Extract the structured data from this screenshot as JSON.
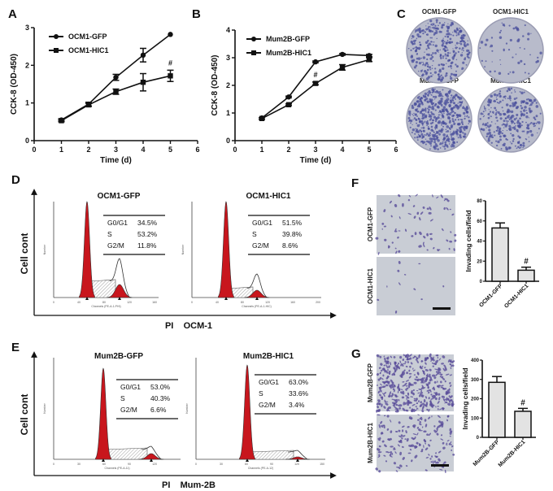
{
  "panels": {
    "A": "A",
    "B": "B",
    "C": "C",
    "D": "D",
    "E": "E",
    "F": "F",
    "G": "G"
  },
  "colors": {
    "red": "#c8161d",
    "purple": "#4a4f9c",
    "blue_pct": "#3a3f9a",
    "plate": "#b9bccd",
    "field": "#c9ccd6"
  },
  "chart_data": [
    {
      "id": "A",
      "type": "line",
      "title": "",
      "xlabel": "Time (d)",
      "ylabel": "CCK-8 (OD-450)",
      "xlim": [
        0,
        6
      ],
      "ylim": [
        0,
        3
      ],
      "xticks": [
        0,
        1,
        2,
        3,
        4,
        5,
        6
      ],
      "yticks": [
        0,
        1,
        2,
        3
      ],
      "x": [
        1,
        2,
        3,
        4,
        5
      ],
      "legend_position": "top-left",
      "series": [
        {
          "name": "OCM1-GFP",
          "marker": "circle",
          "values": [
            0.55,
            0.97,
            1.68,
            2.27,
            2.82
          ],
          "errors": [
            0.03,
            0.05,
            0.08,
            0.18,
            0.02
          ]
        },
        {
          "name": "OCM1-HIC1",
          "marker": "square",
          "values": [
            0.53,
            0.95,
            1.3,
            1.55,
            1.72
          ],
          "errors": [
            0.03,
            0.04,
            0.07,
            0.23,
            0.15
          ]
        }
      ],
      "annotations": [
        {
          "text": "#",
          "x": 5,
          "y": 2.0
        }
      ]
    },
    {
      "id": "B",
      "type": "line",
      "title": "",
      "xlabel": "Time (d)",
      "ylabel": "CCK-8 (OD-450)",
      "xlim": [
        0,
        6
      ],
      "ylim": [
        0,
        4
      ],
      "xticks": [
        0,
        1,
        2,
        3,
        4,
        5,
        6
      ],
      "yticks": [
        0,
        1,
        2,
        3,
        4
      ],
      "x": [
        1,
        2,
        3,
        4,
        5
      ],
      "legend_position": "top-left",
      "series": [
        {
          "name": "Mum2B-GFP",
          "marker": "circle",
          "values": [
            0.82,
            1.58,
            2.85,
            3.12,
            3.08
          ],
          "errors": [
            0.02,
            0.03,
            0.03,
            0.03,
            0.04
          ]
        },
        {
          "name": "Mum2B-HIC1",
          "marker": "square",
          "values": [
            0.8,
            1.3,
            2.07,
            2.65,
            2.93
          ],
          "errors": [
            0.03,
            0.03,
            0.05,
            0.1,
            0.07
          ]
        }
      ],
      "annotations": [
        {
          "text": "#",
          "x": 3,
          "y": 2.3
        }
      ]
    },
    {
      "id": "F",
      "type": "bar",
      "ylabel": "Invading cells/field",
      "categories": [
        "OCM1-GFP",
        "OCM1-HIC1"
      ],
      "values": [
        53,
        11
      ],
      "errors": [
        5,
        3
      ],
      "ylim": [
        0,
        80
      ],
      "yticks": [
        0,
        20,
        40,
        60,
        80
      ],
      "annotations": [
        {
          "text": "#",
          "category": "OCM1-HIC1"
        }
      ]
    },
    {
      "id": "G",
      "type": "bar",
      "ylabel": "Invading cells/field",
      "categories": [
        "Mum2B-GFP",
        "Mum2B-HIC1"
      ],
      "values": [
        285,
        135
      ],
      "errors": [
        30,
        15
      ],
      "ylim": [
        0,
        400
      ],
      "yticks": [
        0,
        100,
        200,
        300,
        400
      ],
      "annotations": [
        {
          "text": "#",
          "category": "Mum2B-HIC1"
        }
      ]
    }
  ],
  "colony": {
    "labels": [
      "OCM1-GFP",
      "OCM1-HIC1",
      "Mum2B-GFP",
      "Mum2B-HIC1"
    ]
  },
  "flow": {
    "D": {
      "ylabel": "Cell cont",
      "xlabel": "PI    OCM-1",
      "plots": [
        {
          "title": "OCM1-GFP",
          "axis_x": "Channels (PE-A-1-PHI)",
          "axis_y": "Number",
          "xticks": [
            "0",
            "40",
            "80",
            "120",
            "160"
          ],
          "rows": [
            {
              "phase": "G0/G1",
              "pct": "34.5%"
            },
            {
              "phase": "S",
              "pct": "53.2%"
            },
            {
              "phase": "G2/M",
              "pct": "11.8%"
            }
          ]
        },
        {
          "title": "OCM1-HIC1",
          "axis_x": "Channels (PE-A-1-HIC)",
          "axis_y": "Number",
          "xticks": [
            "0",
            "40",
            "80",
            "120",
            "160",
            "200"
          ],
          "rows": [
            {
              "phase": "G0/G1",
              "pct": "51.5%"
            },
            {
              "phase": "S",
              "pct": "39.8%"
            },
            {
              "phase": "G2/M",
              "pct": "8.6%"
            }
          ]
        }
      ]
    },
    "E": {
      "ylabel": "Cell cont",
      "xlabel": "PI    Mum-2B",
      "plots": [
        {
          "title": "Mum2B-GFP",
          "axis_x": "Channels (PE-A-11)",
          "axis_y": "Number",
          "xticks": [
            "0",
            "30",
            "60",
            "90",
            "120"
          ],
          "rows": [
            {
              "phase": "G0/G1",
              "pct": "53.0%"
            },
            {
              "phase": "S",
              "pct": "40.3%"
            },
            {
              "phase": "G2/M",
              "pct": "6.6%"
            }
          ]
        },
        {
          "title": "Mum2B-HIC1",
          "axis_x": "Channels (PE-A-12)",
          "axis_y": "Number",
          "xticks": [
            "0",
            "30",
            "60",
            "90",
            "120",
            "150"
          ],
          "rows": [
            {
              "phase": "G0/G1",
              "pct": "63.0%"
            },
            {
              "phase": "S",
              "pct": "33.6%"
            },
            {
              "phase": "G2/M",
              "pct": "3.4%"
            }
          ]
        }
      ]
    }
  },
  "invasion": {
    "F": [
      "OCM1-GFP",
      "OCM1-HIC1"
    ],
    "G": [
      "Mum2B-GFP",
      "Mum2B-HIC1"
    ]
  }
}
